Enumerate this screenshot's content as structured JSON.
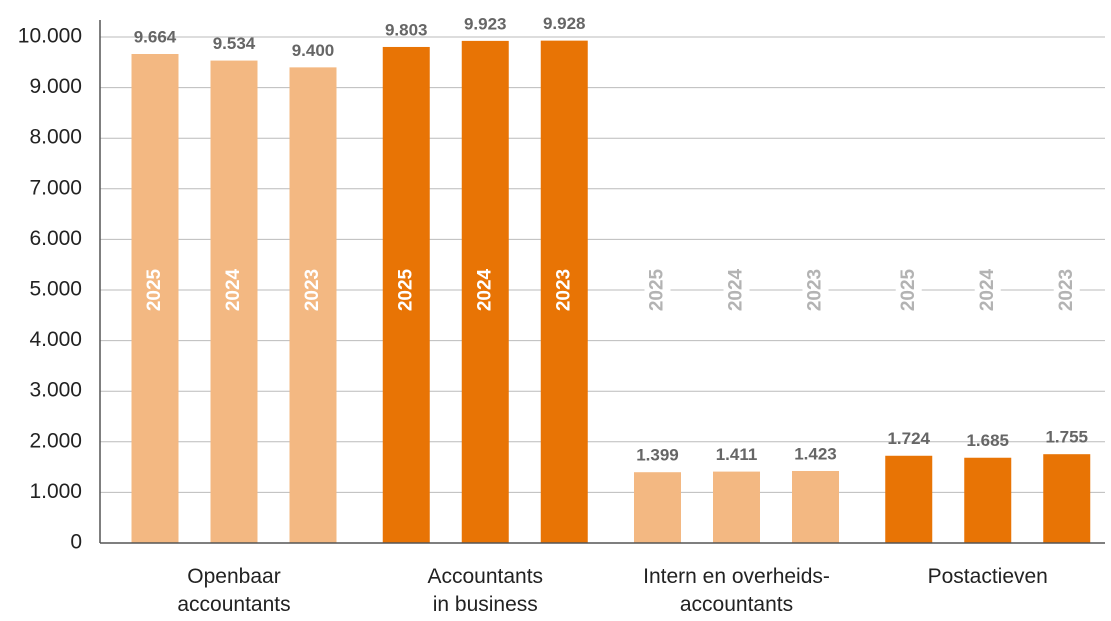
{
  "chart_data": {
    "type": "bar",
    "categories": [
      "Openbaar\naccountants",
      "Accountants\nin business",
      "Intern en overheids-\naccountants",
      "Postactieven"
    ],
    "category_colors": [
      "#f3b882",
      "#e87405",
      "#f3b882",
      "#e87405"
    ],
    "series": [
      {
        "name": "2025",
        "values": [
          9664,
          9803,
          1399,
          1724
        ],
        "value_labels": [
          "9.664",
          "9.803",
          "1.399",
          "1.724"
        ]
      },
      {
        "name": "2024",
        "values": [
          9534,
          9923,
          1411,
          1685
        ],
        "value_labels": [
          "9.534",
          "9.923",
          "1.411",
          "1.685"
        ]
      },
      {
        "name": "2023",
        "values": [
          9400,
          9928,
          1423,
          1755
        ],
        "value_labels": [
          "9.400",
          "9.928",
          "1.423",
          "1.755"
        ]
      }
    ],
    "ylim": [
      0,
      10000
    ],
    "yticks": [
      0,
      {
        "value": 1000,
        "label": "1.000"
      },
      {
        "value": 2000,
        "label": "2.000"
      },
      {
        "value": 3000,
        "label": "3.000"
      },
      {
        "value": 4000,
        "label": "4.000"
      },
      {
        "value": 5000,
        "label": "5.000"
      },
      {
        "value": 6000,
        "label": "6.000"
      },
      {
        "value": 7000,
        "label": "7.000"
      },
      {
        "value": 8000,
        "label": "8.000"
      },
      {
        "value": 9000,
        "label": "9.000"
      },
      {
        "value": 10000,
        "label": "10.000"
      }
    ],
    "grid": true
  }
}
